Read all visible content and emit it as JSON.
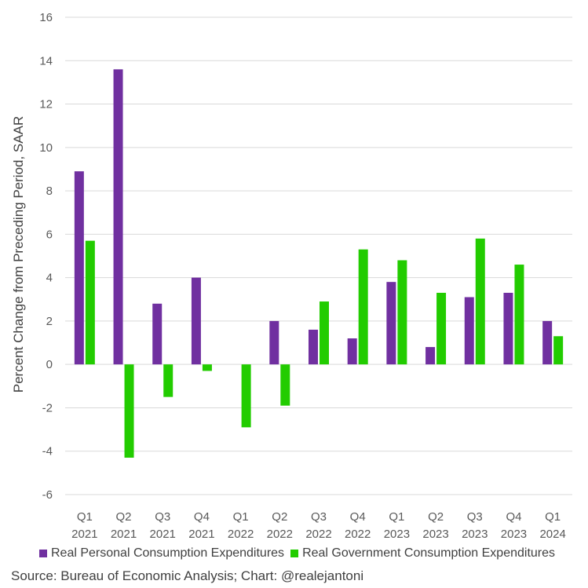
{
  "chart_data": {
    "type": "bar",
    "ylabel": "Percent Change from Preceding Period, SAAR",
    "ylim": [
      -6,
      16
    ],
    "yticks": [
      -6,
      -4,
      -2,
      0,
      2,
      4,
      6,
      8,
      10,
      12,
      14,
      16
    ],
    "grid": true,
    "legend_position": "bottom",
    "categories": [
      [
        "Q1",
        "2021"
      ],
      [
        "Q2",
        "2021"
      ],
      [
        "Q3",
        "2021"
      ],
      [
        "Q4",
        "2021"
      ],
      [
        "Q1",
        "2022"
      ],
      [
        "Q2",
        "2022"
      ],
      [
        "Q3",
        "2022"
      ],
      [
        "Q4",
        "2022"
      ],
      [
        "Q1",
        "2023"
      ],
      [
        "Q2",
        "2023"
      ],
      [
        "Q3",
        "2023"
      ],
      [
        "Q4",
        "2023"
      ],
      [
        "Q1",
        "2024"
      ]
    ],
    "series": [
      {
        "name": "Real Personal Consumption Expenditures",
        "color": "#7030a0",
        "values": [
          8.9,
          13.6,
          2.8,
          4.0,
          0.0,
          2.0,
          1.6,
          1.2,
          3.8,
          0.8,
          3.1,
          3.3,
          2.0
        ]
      },
      {
        "name": "Real Government Consumption Expenditures",
        "color": "#22cc00",
        "values": [
          5.7,
          -4.3,
          -1.5,
          -0.3,
          -2.9,
          -1.9,
          2.9,
          5.3,
          4.8,
          3.3,
          5.8,
          4.6,
          1.3
        ]
      }
    ]
  },
  "source": "Source: Bureau of Economic Analysis; Chart: @realejantoni"
}
